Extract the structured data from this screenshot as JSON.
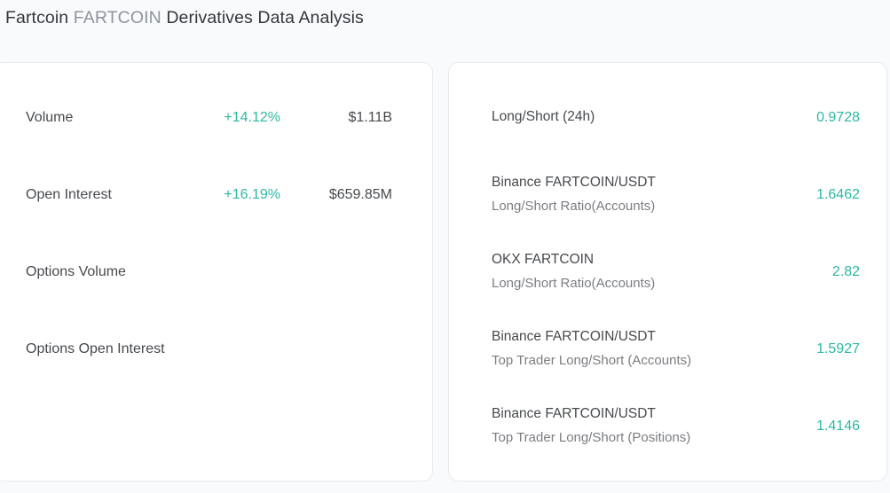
{
  "title": {
    "coin_name": "Fartcoin",
    "ticker": "FARTCOIN",
    "suffix": "Derivatives Data Analysis"
  },
  "colors": {
    "positive": "#2eb8a3",
    "card_background": "#ffffff",
    "page_background": "#f9fafb",
    "card_border": "#e8eaec"
  },
  "derivatives_stats": {
    "rows": [
      {
        "label": "Volume",
        "change": "+14.12%",
        "value": "$1.11B"
      },
      {
        "label": "Open Interest",
        "change": "+16.19%",
        "value": "$659.85M"
      },
      {
        "label": "Options Volume",
        "change": "",
        "value": ""
      },
      {
        "label": "Options Open Interest",
        "change": "",
        "value": ""
      }
    ]
  },
  "long_short_ratios": {
    "rows": [
      {
        "name": "Long/Short (24h)",
        "sub": "",
        "value": "0.9728"
      },
      {
        "name": "Binance FARTCOIN/USDT",
        "sub": "Long/Short Ratio(Accounts)",
        "value": "1.6462"
      },
      {
        "name": "OKX FARTCOIN",
        "sub": "Long/Short Ratio(Accounts)",
        "value": "2.82"
      },
      {
        "name": "Binance FARTCOIN/USDT",
        "sub": "Top Trader Long/Short (Accounts)",
        "value": "1.5927"
      },
      {
        "name": "Binance FARTCOIN/USDT",
        "sub": "Top Trader Long/Short (Positions)",
        "value": "1.4146"
      }
    ]
  }
}
